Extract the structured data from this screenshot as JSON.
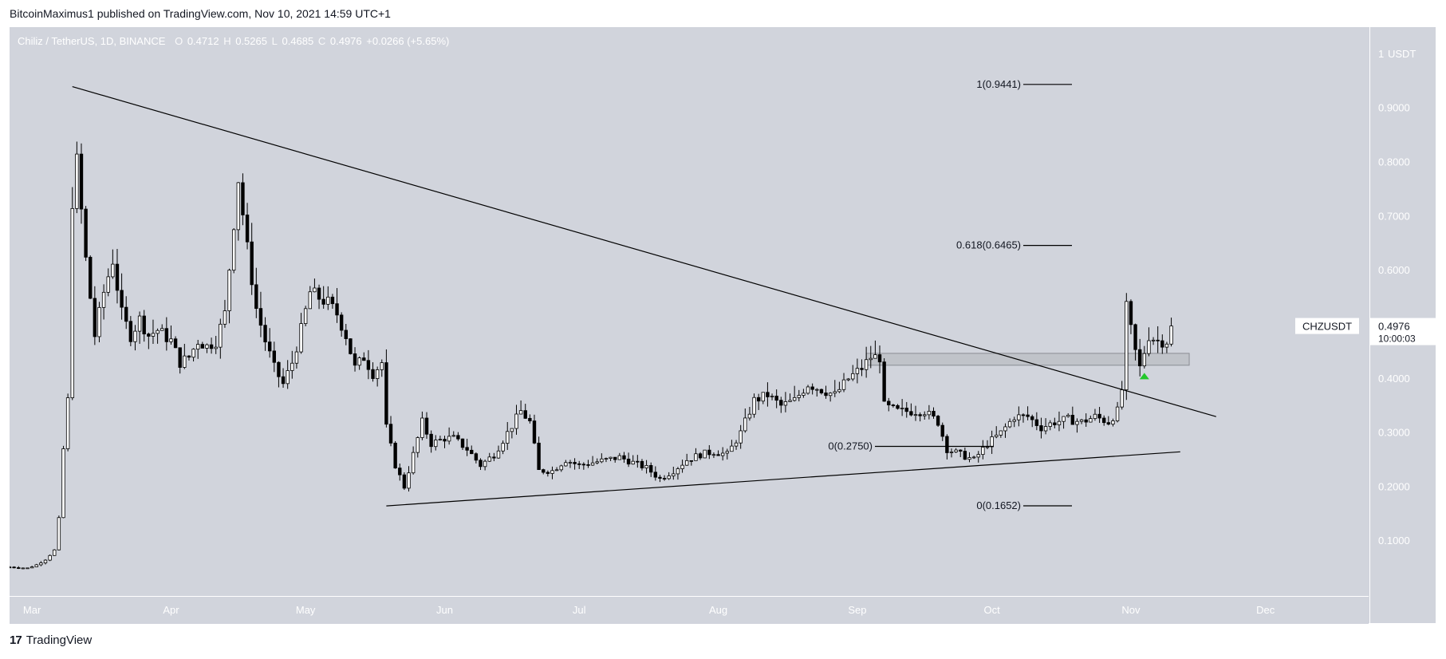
{
  "header": {
    "publisher_line": "BitcoinMaximus1 published on TradingView.com, Nov 10, 2021 14:59 UTC+1"
  },
  "legend": {
    "symbol": "Chiliz / TetherUS, 1D, BINANCE",
    "o_label": "O",
    "o": "0.4712",
    "h_label": "H",
    "h": "0.5265",
    "l_label": "L",
    "l": "0.4685",
    "c_label": "C",
    "c": "0.4976",
    "change": "+0.0266 (+5.65%)"
  },
  "price_tag": {
    "symbol": "CHZUSDT",
    "price": "0.4976",
    "countdown": "10:00:03"
  },
  "footer": {
    "brand": "TradingView",
    "logo": "17"
  },
  "colors": {
    "background": "#d1d4dc",
    "candle_up": "#ffffff",
    "candle_down": "#000000",
    "wick": "#000000",
    "marker": "#22c72a",
    "zone": "#c0c3c9"
  },
  "chart_data": {
    "type": "candlestick",
    "title": "Chiliz / TetherUS, 1D, BINANCE",
    "y_unit": "USDT",
    "ylim": [
      0.0,
      1.05
    ],
    "xlim": [
      "2021-02-24",
      "2021-12-24"
    ],
    "x_ticks": [
      "Mar",
      "Apr",
      "May",
      "Jun",
      "Jul",
      "Aug",
      "Sep",
      "Oct",
      "Nov",
      "Dec"
    ],
    "x_tick_dates": [
      "2021-03-01",
      "2021-04-01",
      "2021-05-01",
      "2021-06-01",
      "2021-07-01",
      "2021-08-01",
      "2021-09-01",
      "2021-10-01",
      "2021-11-01",
      "2021-12-01"
    ],
    "y_ticks": [
      "0.1000",
      "0.2000",
      "0.3000",
      "0.4000",
      "0.5000",
      "0.6000",
      "0.7000",
      "0.8000",
      "0.9000",
      "1"
    ],
    "y_tick_values": [
      0.1,
      0.2,
      0.3,
      0.4,
      0.5,
      0.6,
      0.7,
      0.8,
      0.9,
      1.0
    ],
    "close_series": [
      [
        "2021-02-24",
        0.052
      ],
      [
        "2021-02-26",
        0.051
      ],
      [
        "2021-02-28",
        0.05
      ],
      [
        "2021-03-02",
        0.056
      ],
      [
        "2021-03-04",
        0.066
      ],
      [
        "2021-03-06",
        0.083
      ],
      [
        "2021-03-07",
        0.14
      ],
      [
        "2021-03-08",
        0.27
      ],
      [
        "2021-03-09",
        0.36
      ],
      [
        "2021-03-10",
        0.73
      ],
      [
        "2021-03-11",
        0.8
      ],
      [
        "2021-03-13",
        0.62
      ],
      [
        "2021-03-15",
        0.48
      ],
      [
        "2021-03-17",
        0.56
      ],
      [
        "2021-03-19",
        0.62
      ],
      [
        "2021-03-21",
        0.52
      ],
      [
        "2021-03-23",
        0.48
      ],
      [
        "2021-03-25",
        0.51
      ],
      [
        "2021-03-27",
        0.48
      ],
      [
        "2021-03-29",
        0.49
      ],
      [
        "2021-04-01",
        0.47
      ],
      [
        "2021-04-03",
        0.43
      ],
      [
        "2021-04-05",
        0.44
      ],
      [
        "2021-04-07",
        0.47
      ],
      [
        "2021-04-09",
        0.46
      ],
      [
        "2021-04-11",
        0.47
      ],
      [
        "2021-04-13",
        0.52
      ],
      [
        "2021-04-15",
        0.69
      ],
      [
        "2021-04-16",
        0.77
      ],
      [
        "2021-04-18",
        0.64
      ],
      [
        "2021-04-20",
        0.53
      ],
      [
        "2021-04-22",
        0.47
      ],
      [
        "2021-04-24",
        0.42
      ],
      [
        "2021-04-26",
        0.39
      ],
      [
        "2021-04-28",
        0.43
      ],
      [
        "2021-04-30",
        0.49
      ],
      [
        "2021-05-02",
        0.56
      ],
      [
        "2021-05-04",
        0.55
      ],
      [
        "2021-05-06",
        0.54
      ],
      [
        "2021-05-08",
        0.52
      ],
      [
        "2021-05-10",
        0.48
      ],
      [
        "2021-05-12",
        0.42
      ],
      [
        "2021-05-14",
        0.44
      ],
      [
        "2021-05-16",
        0.41
      ],
      [
        "2021-05-18",
        0.43
      ],
      [
        "2021-05-19",
        0.31
      ],
      [
        "2021-05-21",
        0.24
      ],
      [
        "2021-05-23",
        0.2
      ],
      [
        "2021-05-25",
        0.26
      ],
      [
        "2021-05-27",
        0.32
      ],
      [
        "2021-05-29",
        0.28
      ],
      [
        "2021-06-01",
        0.29
      ],
      [
        "2021-06-03",
        0.29
      ],
      [
        "2021-06-06",
        0.27
      ],
      [
        "2021-06-09",
        0.24
      ],
      [
        "2021-06-12",
        0.26
      ],
      [
        "2021-06-15",
        0.3
      ],
      [
        "2021-06-18",
        0.34
      ],
      [
        "2021-06-20",
        0.32
      ],
      [
        "2021-06-22",
        0.23
      ],
      [
        "2021-06-25",
        0.23
      ],
      [
        "2021-06-28",
        0.25
      ],
      [
        "2021-07-01",
        0.24
      ],
      [
        "2021-07-04",
        0.245
      ],
      [
        "2021-07-07",
        0.25
      ],
      [
        "2021-07-10",
        0.255
      ],
      [
        "2021-07-13",
        0.245
      ],
      [
        "2021-07-16",
        0.235
      ],
      [
        "2021-07-19",
        0.215
      ],
      [
        "2021-07-22",
        0.23
      ],
      [
        "2021-07-25",
        0.25
      ],
      [
        "2021-07-28",
        0.26
      ],
      [
        "2021-07-31",
        0.265
      ],
      [
        "2021-08-03",
        0.26
      ],
      [
        "2021-08-06",
        0.3
      ],
      [
        "2021-08-09",
        0.36
      ],
      [
        "2021-08-12",
        0.37
      ],
      [
        "2021-08-15",
        0.35
      ],
      [
        "2021-08-18",
        0.36
      ],
      [
        "2021-08-21",
        0.39
      ],
      [
        "2021-08-24",
        0.38
      ],
      [
        "2021-08-27",
        0.37
      ],
      [
        "2021-08-30",
        0.4
      ],
      [
        "2021-09-02",
        0.42
      ],
      [
        "2021-09-04",
        0.44
      ],
      [
        "2021-09-06",
        0.44
      ],
      [
        "2021-09-07",
        0.35
      ],
      [
        "2021-09-10",
        0.34
      ],
      [
        "2021-09-13",
        0.34
      ],
      [
        "2021-09-16",
        0.34
      ],
      [
        "2021-09-19",
        0.32
      ],
      [
        "2021-09-21",
        0.27
      ],
      [
        "2021-09-24",
        0.26
      ],
      [
        "2021-09-27",
        0.25
      ],
      [
        "2021-09-30",
        0.28
      ],
      [
        "2021-10-03",
        0.3
      ],
      [
        "2021-10-06",
        0.33
      ],
      [
        "2021-10-09",
        0.33
      ],
      [
        "2021-10-12",
        0.31
      ],
      [
        "2021-10-15",
        0.32
      ],
      [
        "2021-10-18",
        0.325
      ],
      [
        "2021-10-21",
        0.32
      ],
      [
        "2021-10-24",
        0.33
      ],
      [
        "2021-10-27",
        0.32
      ],
      [
        "2021-10-29",
        0.34
      ],
      [
        "2021-10-30",
        0.38
      ],
      [
        "2021-10-31",
        0.53
      ],
      [
        "2021-11-02",
        0.45
      ],
      [
        "2021-11-03",
        0.42
      ],
      [
        "2021-11-05",
        0.48
      ],
      [
        "2021-11-07",
        0.47
      ],
      [
        "2021-11-09",
        0.47
      ],
      [
        "2021-11-10",
        0.4976
      ]
    ],
    "annotations": {
      "descending_resistance": {
        "start": [
          "2021-03-10",
          0.94
        ],
        "end": [
          "2021-11-20",
          0.33
        ]
      },
      "ascending_support": {
        "start": [
          "2021-05-19",
          0.165
        ],
        "end": [
          "2021-11-12",
          0.265
        ]
      },
      "horizontal_zone": {
        "start": "2021-09-03",
        "end": "2021-11-14",
        "low": 0.425,
        "high": 0.447
      },
      "fib_levels": [
        {
          "label": "1(0.9441)",
          "value": 0.9441
        },
        {
          "label": "0.618(0.6465)",
          "value": 0.6465
        },
        {
          "label": "0(0.2750)",
          "value": 0.275
        },
        {
          "label": "0(0.1652)",
          "value": 0.1652
        }
      ],
      "marker": {
        "shape": "triangle-up",
        "date": "2021-11-04",
        "value": 0.405
      }
    }
  }
}
